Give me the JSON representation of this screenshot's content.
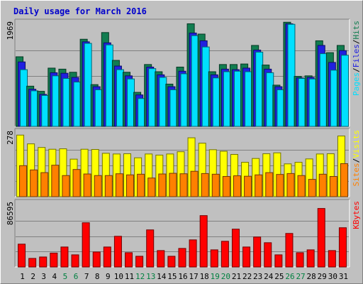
{
  "title": "Daily usage for March 2016",
  "chart_data": [
    {
      "type": "bar",
      "panel": "hits-files-pages",
      "ymax_label": "1969",
      "ylim": [
        0,
        1969
      ],
      "categories": [
        "1",
        "2",
        "3",
        "4",
        "5",
        "6",
        "7",
        "8",
        "9",
        "10",
        "11",
        "12",
        "13",
        "14",
        "15",
        "16",
        "17",
        "18",
        "19",
        "20",
        "21",
        "22",
        "23",
        "24",
        "25",
        "26",
        "27",
        "28",
        "29",
        "30",
        "31"
      ],
      "series": [
        {
          "name": "Hits",
          "color": "#117d50",
          "values": [
            1350,
            780,
            680,
            1130,
            1110,
            1050,
            1690,
            810,
            1820,
            1280,
            1050,
            660,
            1200,
            1060,
            820,
            1150,
            1990,
            1790,
            1060,
            1200,
            1200,
            1210,
            1570,
            1190,
            800,
            2020,
            970,
            980,
            1660,
            1430,
            1570
          ]
        },
        {
          "name": "Files",
          "color": "#2020e0",
          "values": [
            1250,
            720,
            620,
            1040,
            1030,
            950,
            1640,
            770,
            1620,
            1170,
            980,
            610,
            1150,
            1000,
            770,
            1070,
            1810,
            1660,
            1000,
            1110,
            1100,
            1130,
            1480,
            1110,
            770,
            1990,
            940,
            950,
            1570,
            1240,
            1470
          ]
        },
        {
          "name": "Pages",
          "color": "#00e0ff",
          "values": [
            1100,
            690,
            600,
            980,
            930,
            860,
            1610,
            710,
            1580,
            1100,
            920,
            540,
            1120,
            950,
            710,
            1020,
            1760,
            1540,
            940,
            1060,
            1070,
            1060,
            1440,
            1040,
            710,
            1980,
            930,
            920,
            1410,
            1090,
            1380
          ]
        }
      ],
      "right_labels": [
        {
          "text": "Pages",
          "color": "#00e0ff"
        },
        {
          "text": "/",
          "color": "#000000"
        },
        {
          "text": "Files",
          "color": "#2020e0"
        },
        {
          "text": "/",
          "color": "#000000"
        },
        {
          "text": "Hits",
          "color": "#117d50"
        }
      ]
    },
    {
      "type": "bar",
      "panel": "visits-sites",
      "ymax_label": "278",
      "ylim": [
        0,
        278
      ],
      "categories": [
        "1",
        "2",
        "3",
        "4",
        "5",
        "6",
        "7",
        "8",
        "9",
        "10",
        "11",
        "12",
        "13",
        "14",
        "15",
        "16",
        "17",
        "18",
        "19",
        "20",
        "21",
        "22",
        "23",
        "24",
        "25",
        "26",
        "27",
        "28",
        "29",
        "30",
        "31"
      ],
      "series": [
        {
          "name": "Visits",
          "color": "#ffff00",
          "values": [
            274,
            235,
            219,
            211,
            213,
            167,
            211,
            210,
            193,
            190,
            191,
            173,
            190,
            185,
            190,
            200,
            262,
            238,
            209,
            202,
            188,
            153,
            170,
            191,
            195,
            146,
            153,
            168,
            190,
            191,
            270
          ]
        },
        {
          "name": "Sites",
          "color": "#ff8000",
          "values": [
            138,
            119,
            107,
            140,
            94,
            121,
            101,
            94,
            94,
            102,
            97,
            100,
            83,
            101,
            104,
            102,
            113,
            103,
            100,
            90,
            93,
            91,
            97,
            107,
            99,
            103,
            94,
            77,
            100,
            90,
            147
          ]
        }
      ],
      "right_labels": [
        {
          "text": "Sites",
          "color": "#ff8000"
        },
        {
          "text": "/",
          "color": "#000000"
        },
        {
          "text": "Visits",
          "color": "#ffff00"
        }
      ]
    },
    {
      "type": "bar",
      "panel": "kbytes",
      "ymax_label": "86595",
      "ylim": [
        0,
        86595
      ],
      "categories": [
        "1",
        "2",
        "3",
        "4",
        "5",
        "6",
        "7",
        "8",
        "9",
        "10",
        "11",
        "12",
        "13",
        "14",
        "15",
        "16",
        "17",
        "18",
        "19",
        "20",
        "21",
        "22",
        "23",
        "24",
        "25",
        "26",
        "27",
        "28",
        "29",
        "30",
        "31"
      ],
      "series": [
        {
          "name": "KBytes",
          "color": "#ff0000",
          "values": [
            32000,
            12000,
            14000,
            19500,
            28000,
            17000,
            62000,
            21000,
            28000,
            43000,
            20000,
            15000,
            52000,
            23000,
            15000,
            26000,
            38000,
            72000,
            24000,
            36000,
            53000,
            28000,
            42000,
            34000,
            17000,
            47000,
            20000,
            24000,
            82000,
            23000,
            55000
          ]
        }
      ],
      "right_labels": [
        {
          "text": "KBytes",
          "color": "#ff0000"
        }
      ]
    }
  ],
  "x_labels": {
    "days": [
      "1",
      "2",
      "3",
      "4",
      "5",
      "6",
      "7",
      "8",
      "9",
      "10",
      "11",
      "12",
      "13",
      "14",
      "15",
      "16",
      "17",
      "18",
      "19",
      "20",
      "21",
      "22",
      "23",
      "24",
      "25",
      "26",
      "27",
      "28",
      "29",
      "30",
      "31"
    ],
    "weekend_days": [
      "5",
      "6",
      "12",
      "13",
      "19",
      "20",
      "26",
      "27"
    ],
    "weekday_color": "#000000",
    "weekend_color": "#008040"
  }
}
